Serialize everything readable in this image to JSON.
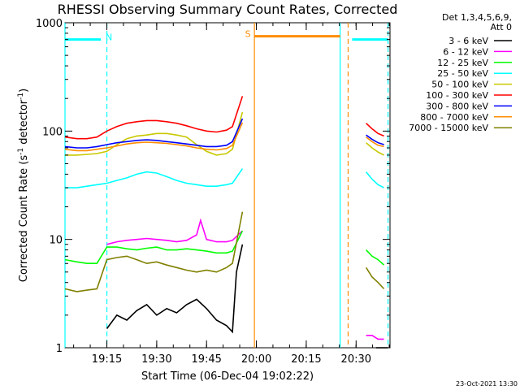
{
  "chart_data": {
    "type": "line",
    "title": "RHESSI Observing Summary Count Rates, Corrected",
    "xlabel": "Start Time (06-Dec-04 19:02:22)",
    "ylabel_parts": [
      "Corrected Count Rate (s",
      "-1",
      " detector",
      "-1",
      ")"
    ],
    "y_scale": "log",
    "ylim": [
      1,
      1000
    ],
    "y_ticks": [
      {
        "value": 1,
        "label": "1"
      },
      {
        "value": 10,
        "label": "10"
      },
      {
        "value": 100,
        "label": "100"
      },
      {
        "value": 1000,
        "label": "1000"
      }
    ],
    "xlim": [
      19.04,
      20.67
    ],
    "x_ticks": [
      {
        "value": 19.25,
        "label": "19:15"
      },
      {
        "value": 19.5,
        "label": "19:30"
      },
      {
        "value": 19.75,
        "label": "19:45"
      },
      {
        "value": 20.0,
        "label": "20:00"
      },
      {
        "value": 20.25,
        "label": "20:15"
      },
      {
        "value": 20.5,
        "label": "20:30"
      }
    ],
    "legend_header": [
      "Det 1,3,4,5,6,9,",
      "Att 0"
    ],
    "legend_position": "right",
    "series": [
      {
        "name": "3 - 6 keV",
        "color": "#000000",
        "x": [
          19.25,
          19.3,
          19.35,
          19.4,
          19.45,
          19.5,
          19.55,
          19.6,
          19.65,
          19.7,
          19.75,
          19.8,
          19.85,
          19.88,
          19.9,
          19.93
        ],
        "y": [
          1.5,
          2.0,
          1.8,
          2.2,
          2.5,
          2.0,
          2.3,
          2.1,
          2.5,
          2.8,
          2.3,
          1.8,
          1.6,
          1.4,
          5.0,
          9.0
        ]
      },
      {
        "name": "6 - 12 keV",
        "color": "#ff00ff",
        "x": [
          19.25,
          19.3,
          19.35,
          19.4,
          19.45,
          19.5,
          19.55,
          19.6,
          19.65,
          19.7,
          19.72,
          19.75,
          19.8,
          19.85,
          19.88,
          19.93
        ],
        "y": [
          9.0,
          9.5,
          9.8,
          10.0,
          10.2,
          10.0,
          9.8,
          9.5,
          9.8,
          11.0,
          15.0,
          10.0,
          9.5,
          9.5,
          9.8,
          12.0
        ]
      },
      {
        "name": "12 - 25 keV",
        "color": "#00ff00",
        "x": [
          19.04,
          19.1,
          19.15,
          19.2,
          19.25,
          19.3,
          19.35,
          19.4,
          19.45,
          19.5,
          19.55,
          19.6,
          19.65,
          19.7,
          19.75,
          19.8,
          19.85,
          19.88,
          19.93
        ],
        "y": [
          6.5,
          6.2,
          6.0,
          6.0,
          8.5,
          8.5,
          8.2,
          8.0,
          8.3,
          8.5,
          8.0,
          8.0,
          8.2,
          8.0,
          7.8,
          7.5,
          7.5,
          7.8,
          12.0
        ]
      },
      {
        "name": "25 - 50 keV",
        "color": "#00ffff",
        "x": [
          19.04,
          19.1,
          19.15,
          19.2,
          19.25,
          19.3,
          19.35,
          19.4,
          19.45,
          19.5,
          19.55,
          19.6,
          19.65,
          19.7,
          19.75,
          19.8,
          19.85,
          19.88,
          19.93
        ],
        "y": [
          30,
          30,
          31,
          32,
          33,
          35,
          37,
          40,
          42,
          41,
          38,
          35,
          33,
          32,
          31,
          31,
          32,
          33,
          45
        ]
      },
      {
        "name": "50 - 100 keV",
        "color": "#c8c800",
        "x": [
          19.04,
          19.1,
          19.15,
          19.2,
          19.25,
          19.3,
          19.35,
          19.4,
          19.45,
          19.5,
          19.55,
          19.6,
          19.65,
          19.7,
          19.75,
          19.8,
          19.85,
          19.88,
          19.93
        ],
        "y": [
          60,
          60,
          61,
          62,
          65,
          75,
          85,
          90,
          92,
          95,
          95,
          92,
          88,
          75,
          65,
          60,
          62,
          68,
          150
        ]
      },
      {
        "name": "100 - 300 keV",
        "color": "#ff0000",
        "x": [
          19.04,
          19.1,
          19.15,
          19.2,
          19.25,
          19.3,
          19.35,
          19.4,
          19.45,
          19.5,
          19.55,
          19.6,
          19.65,
          19.7,
          19.75,
          19.8,
          19.85,
          19.88,
          19.93
        ],
        "y": [
          88,
          85,
          85,
          88,
          100,
          110,
          118,
          122,
          125,
          125,
          122,
          118,
          112,
          105,
          100,
          98,
          102,
          110,
          210
        ]
      },
      {
        "name": "300 - 800 keV",
        "color": "#0000ff",
        "x": [
          19.04,
          19.1,
          19.15,
          19.2,
          19.25,
          19.3,
          19.35,
          19.4,
          19.45,
          19.5,
          19.55,
          19.6,
          19.65,
          19.7,
          19.75,
          19.8,
          19.85,
          19.88,
          19.93
        ],
        "y": [
          72,
          70,
          70,
          72,
          75,
          78,
          80,
          82,
          83,
          82,
          80,
          78,
          76,
          74,
          72,
          72,
          74,
          80,
          130
        ]
      },
      {
        "name": "800 - 7000 keV",
        "color": "#ff8c00",
        "x": [
          19.04,
          19.1,
          19.15,
          19.2,
          19.25,
          19.3,
          19.35,
          19.4,
          19.45,
          19.5,
          19.55,
          19.6,
          19.65,
          19.7,
          19.75,
          19.8,
          19.85,
          19.88,
          19.93
        ],
        "y": [
          68,
          66,
          66,
          68,
          70,
          73,
          76,
          78,
          79,
          78,
          77,
          75,
          73,
          70,
          68,
          67,
          69,
          74,
          120
        ]
      },
      {
        "name": "7000 - 15000 keV",
        "color": "#808000",
        "x": [
          19.04,
          19.1,
          19.15,
          19.2,
          19.25,
          19.3,
          19.35,
          19.4,
          19.45,
          19.5,
          19.55,
          19.6,
          19.65,
          19.7,
          19.75,
          19.8,
          19.85,
          19.88,
          19.93
        ],
        "y": [
          3.5,
          3.3,
          3.4,
          3.5,
          6.5,
          6.8,
          7.0,
          6.5,
          6.0,
          6.2,
          5.8,
          5.5,
          5.2,
          5.0,
          5.2,
          5.0,
          5.5,
          6.0,
          18
        ]
      }
    ],
    "after_gap_series": [
      {
        "name": "3 - 6 keV",
        "color": "#000000",
        "x": [
          20.6,
          20.62,
          20.64,
          20.66
        ],
        "y": [
          1.0,
          1.0,
          1.0,
          1.0
        ]
      },
      {
        "name": "6 - 12 keV",
        "color": "#ff00ff",
        "x": [
          20.55,
          20.58,
          20.61,
          20.64
        ],
        "y": [
          1.3,
          1.3,
          1.2,
          1.2
        ]
      },
      {
        "name": "12 - 25 keV",
        "color": "#00ff00",
        "x": [
          20.55,
          20.58,
          20.61,
          20.64
        ],
        "y": [
          8.0,
          7.0,
          6.5,
          5.8
        ]
      },
      {
        "name": "25 - 50 keV",
        "color": "#00ffff",
        "x": [
          20.55,
          20.58,
          20.61,
          20.64
        ],
        "y": [
          42,
          36,
          32,
          30
        ]
      },
      {
        "name": "50 - 100 keV",
        "color": "#c8c800",
        "x": [
          20.55,
          20.58,
          20.61,
          20.64
        ],
        "y": [
          78,
          70,
          64,
          60
        ]
      },
      {
        "name": "100 - 300 keV",
        "color": "#ff0000",
        "x": [
          20.55,
          20.58,
          20.61,
          20.64
        ],
        "y": [
          118,
          105,
          95,
          90
        ]
      },
      {
        "name": "300 - 800 keV",
        "color": "#0000ff",
        "x": [
          20.55,
          20.58,
          20.61,
          20.64
        ],
        "y": [
          92,
          84,
          78,
          75
        ]
      },
      {
        "name": "800 - 7000 keV",
        "color": "#ff8c00",
        "x": [
          20.55,
          20.58,
          20.61,
          20.64
        ],
        "y": [
          88,
          80,
          74,
          72
        ]
      },
      {
        "name": "7000 - 15000 keV",
        "color": "#808000",
        "x": [
          20.55,
          20.58,
          20.61,
          20.64
        ],
        "y": [
          5.5,
          4.5,
          4.0,
          3.5
        ]
      }
    ],
    "annotations": {
      "night": {
        "label": "N",
        "color": "#00ffff",
        "bars": [
          {
            "x0": 19.04,
            "x1": 19.22,
            "y": 700
          },
          {
            "x0": 20.48,
            "x1": 20.66,
            "y": 700
          }
        ],
        "solid_lines": [
          19.04,
          20.42
        ],
        "dashed_lines": [
          19.25,
          20.66
        ]
      },
      "saa": {
        "label": "S",
        "color": "#ff8c00",
        "bars": [
          {
            "x0": 19.99,
            "x1": 20.42,
            "y": 750
          }
        ],
        "solid_lines": [
          19.99
        ],
        "dashed_lines": [
          20.46
        ]
      }
    },
    "timestamp": "23-Oct-2021 13:30"
  }
}
